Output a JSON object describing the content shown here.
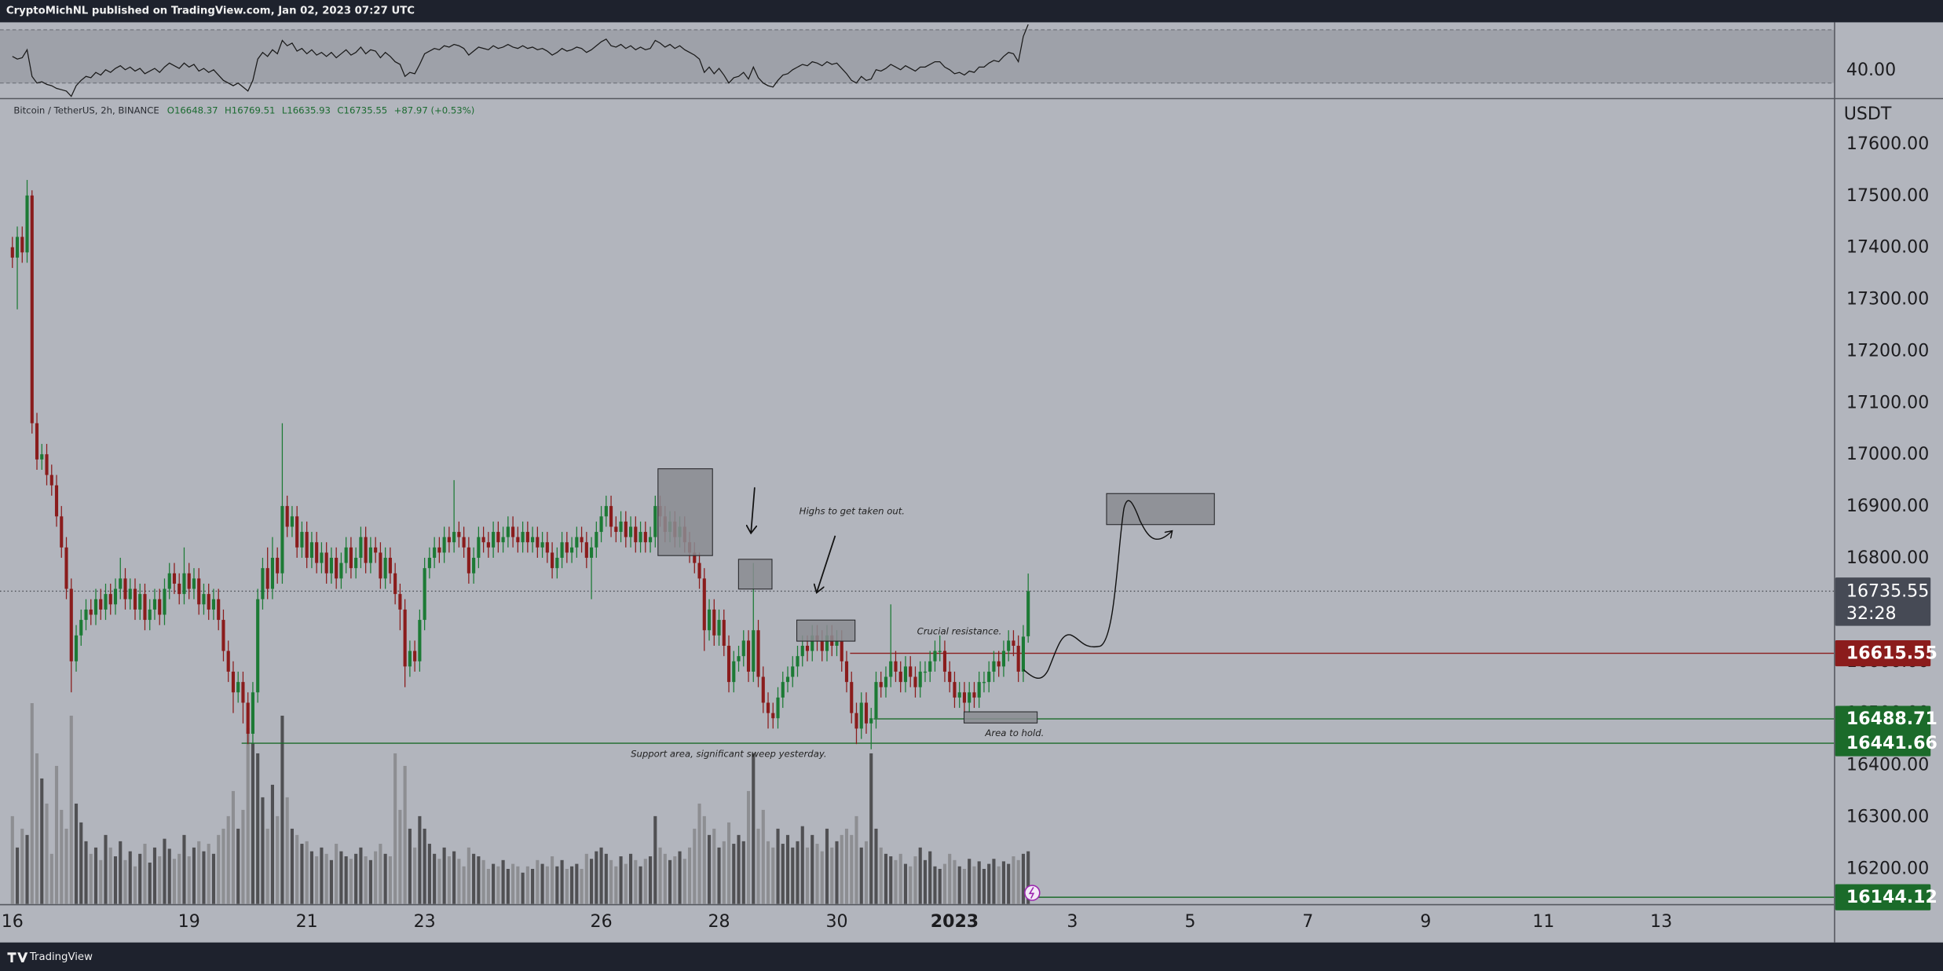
{
  "chart_data": {
    "type": "candlestick",
    "header": "CryptoMichNL published on TradingView.com, Jan 02, 2023 07:27 UTC",
    "symbol": "Bitcoin / TetherUS, 2h, BINANCE",
    "ohlc_legend": {
      "open": "O16648.37",
      "high": "H16769.51",
      "low": "L16635.93",
      "close": "C16735.55",
      "change": "+87.97 (+0.53%)"
    },
    "currency": "USDT",
    "up_color": "#1c7a35",
    "down_color": "#8a1c1c",
    "volume_colors": {
      "up": "#505053",
      "down": "#8d8e92"
    },
    "open": [
      17400,
      17380,
      17420,
      17390,
      17500,
      17060,
      16990,
      17000,
      16960,
      16940,
      16880,
      16820,
      16740,
      16600,
      16650,
      16680,
      16700,
      16690,
      16720,
      16700,
      16730,
      16710,
      16740,
      16760,
      16720,
      16740,
      16700,
      16730,
      16680,
      16700,
      16720,
      16690,
      16740,
      16770,
      16750,
      16730,
      16770,
      16740,
      16760,
      16710,
      16730,
      16700,
      16720,
      16680,
      16620,
      16580,
      16540,
      16560,
      16520,
      16460,
      16540,
      16720,
      16780,
      16740,
      16800,
      16770,
      16900,
      16860,
      16880,
      16820,
      16850,
      16800,
      16830,
      16790,
      16810,
      16770,
      16800,
      16760,
      16790,
      16820,
      16780,
      16800,
      16840,
      16790,
      16820,
      16810,
      16760,
      16800,
      16770,
      16730,
      16700,
      16590,
      16620,
      16600,
      16680,
      16780,
      16800,
      16820,
      16810,
      16840,
      16830,
      16850,
      16840,
      16820,
      16770,
      16800,
      16840,
      16830,
      16820,
      16850,
      16830,
      16840,
      16860,
      16840,
      16830,
      16850,
      16830,
      16840,
      16820,
      16830,
      16810,
      16780,
      16800,
      16830,
      16810,
      16820,
      16840,
      16830,
      16800,
      16820,
      16850,
      16880,
      16900,
      16860,
      16850,
      16870,
      16840,
      16860,
      16830,
      16850,
      16830,
      16840,
      16900,
      16880,
      16850,
      16870,
      16840,
      16860,
      16830,
      16810,
      16790,
      16760,
      16660,
      16700,
      16650,
      16680,
      16630,
      16560,
      16600,
      16610,
      16640,
      16580,
      16660,
      16570,
      16520,
      16500,
      16490,
      16530,
      16560,
      16570,
      16590,
      16610,
      16630,
      16620,
      16650,
      16640,
      16620,
      16650,
      16630,
      16640,
      16600,
      16560,
      16500,
      16470,
      16520,
      16480,
      16490,
      16560,
      16550,
      16570,
      16600,
      16580,
      16560,
      16590,
      16570,
      16550,
      16580,
      16580,
      16600,
      16620,
      16620,
      16580,
      16560,
      16530,
      16540,
      16520,
      16540,
      16530,
      16560,
      16560,
      16580,
      16600,
      16590,
      16620,
      16640,
      16630,
      16580,
      16648.37
    ],
    "high": [
      17420,
      17440,
      17440,
      17530,
      17510,
      17080,
      17020,
      17020,
      16980,
      16960,
      16900,
      16840,
      16760,
      16670,
      16700,
      16720,
      16720,
      16740,
      16740,
      16750,
      16750,
      16760,
      16800,
      16780,
      16760,
      16760,
      16750,
      16750,
      16720,
      16740,
      16740,
      16760,
      16790,
      16790,
      16770,
      16820,
      16790,
      16780,
      16780,
      16750,
      16750,
      16740,
      16740,
      16700,
      16640,
      16600,
      16580,
      16580,
      16540,
      16560,
      16740,
      16800,
      16820,
      16840,
      16820,
      17060,
      16920,
      16900,
      16900,
      16870,
      16870,
      16850,
      16850,
      16830,
      16830,
      16820,
      16820,
      16810,
      16840,
      16840,
      16820,
      16860,
      16860,
      16840,
      16840,
      16830,
      16820,
      16820,
      16790,
      16750,
      16720,
      16640,
      16640,
      16700,
      16800,
      16820,
      16840,
      16840,
      16860,
      16860,
      16950,
      16870,
      16860,
      16840,
      16820,
      16860,
      16860,
      16850,
      16870,
      16870,
      16860,
      16880,
      16880,
      16860,
      16870,
      16870,
      16860,
      16860,
      16850,
      16850,
      16830,
      16820,
      16850,
      16850,
      16840,
      16860,
      16860,
      16850,
      16840,
      16870,
      16900,
      16920,
      16920,
      16880,
      16890,
      16890,
      16880,
      16880,
      16870,
      16870,
      16860,
      16920,
      16920,
      16900,
      16890,
      16890,
      16880,
      16880,
      16850,
      16830,
      16810,
      16780,
      16720,
      16720,
      16700,
      16700,
      16650,
      16620,
      16630,
      16660,
      16660,
      16790,
      16680,
      16590,
      16540,
      16520,
      16550,
      16580,
      16590,
      16610,
      16630,
      16650,
      16650,
      16670,
      16670,
      16660,
      16670,
      16670,
      16660,
      16660,
      16620,
      16580,
      16520,
      16540,
      16540,
      16510,
      16580,
      16580,
      16590,
      16710,
      16620,
      16600,
      16610,
      16610,
      16590,
      16600,
      16600,
      16620,
      16640,
      16650,
      16640,
      16600,
      16580,
      16560,
      16560,
      16560,
      16560,
      16580,
      16580,
      16600,
      16620,
      16620,
      16640,
      16660,
      16660,
      16650,
      16670,
      16769.51
    ],
    "low": [
      17360,
      17280,
      17370,
      17370,
      17040,
      16970,
      16970,
      16940,
      16920,
      16860,
      16800,
      16720,
      16540,
      16580,
      16630,
      16660,
      16670,
      16670,
      16680,
      16680,
      16690,
      16690,
      16720,
      16700,
      16700,
      16680,
      16680,
      16660,
      16660,
      16680,
      16670,
      16670,
      16720,
      16730,
      16710,
      16710,
      16720,
      16720,
      16690,
      16690,
      16680,
      16680,
      16660,
      16600,
      16560,
      16500,
      16520,
      16480,
      16440,
      16440,
      16520,
      16700,
      16720,
      16720,
      16750,
      16750,
      16840,
      16840,
      16800,
      16800,
      16780,
      16780,
      16770,
      16770,
      16750,
      16750,
      16740,
      16740,
      16770,
      16760,
      16760,
      16780,
      16770,
      16770,
      16790,
      16740,
      16740,
      16750,
      16710,
      16660,
      16550,
      16570,
      16580,
      16580,
      16660,
      16760,
      16780,
      16790,
      16790,
      16810,
      16810,
      16820,
      16800,
      16750,
      16750,
      16780,
      16810,
      16800,
      16800,
      16810,
      16810,
      16820,
      16820,
      16810,
      16810,
      16810,
      16810,
      16800,
      16800,
      16790,
      16760,
      16760,
      16780,
      16790,
      16790,
      16800,
      16810,
      16780,
      16720,
      16800,
      16830,
      16860,
      16840,
      16830,
      16830,
      16820,
      16820,
      16810,
      16810,
      16810,
      16810,
      16820,
      16860,
      16830,
      16830,
      16820,
      16820,
      16810,
      16790,
      16770,
      16740,
      16620,
      16640,
      16630,
      16630,
      16610,
      16540,
      16540,
      16580,
      16590,
      16560,
      16560,
      16550,
      16500,
      16470,
      16470,
      16470,
      16510,
      16540,
      16550,
      16570,
      16590,
      16600,
      16600,
      16620,
      16600,
      16600,
      16610,
      16610,
      16580,
      16540,
      16480,
      16440,
      16450,
      16460,
      16430,
      16470,
      16530,
      16530,
      16550,
      16560,
      16540,
      16540,
      16550,
      16530,
      16530,
      16560,
      16560,
      16580,
      16600,
      16560,
      16540,
      16510,
      16510,
      16500,
      16500,
      16510,
      16510,
      16540,
      16540,
      16560,
      16570,
      16570,
      16600,
      16610,
      16560,
      16560,
      16635.93
    ],
    "close": [
      17380,
      17420,
      17390,
      17500,
      17060,
      16990,
      17000,
      16960,
      16940,
      16880,
      16820,
      16740,
      16600,
      16650,
      16680,
      16700,
      16690,
      16720,
      16700,
      16730,
      16710,
      16740,
      16760,
      16720,
      16740,
      16700,
      16730,
      16680,
      16700,
      16720,
      16690,
      16740,
      16770,
      16750,
      16730,
      16770,
      16740,
      16760,
      16710,
      16730,
      16700,
      16720,
      16680,
      16620,
      16580,
      16540,
      16560,
      16520,
      16460,
      16540,
      16720,
      16780,
      16740,
      16800,
      16770,
      16900,
      16860,
      16880,
      16820,
      16850,
      16800,
      16830,
      16790,
      16810,
      16770,
      16800,
      16760,
      16790,
      16820,
      16780,
      16800,
      16840,
      16790,
      16820,
      16810,
      16760,
      16800,
      16770,
      16730,
      16700,
      16590,
      16620,
      16600,
      16680,
      16780,
      16800,
      16820,
      16810,
      16840,
      16830,
      16850,
      16840,
      16820,
      16770,
      16800,
      16840,
      16830,
      16820,
      16850,
      16830,
      16840,
      16860,
      16840,
      16830,
      16850,
      16830,
      16840,
      16820,
      16830,
      16810,
      16780,
      16800,
      16830,
      16810,
      16820,
      16840,
      16830,
      16800,
      16820,
      16850,
      16880,
      16900,
      16860,
      16850,
      16870,
      16840,
      16860,
      16830,
      16850,
      16830,
      16840,
      16900,
      16880,
      16850,
      16870,
      16840,
      16860,
      16830,
      16810,
      16790,
      16760,
      16660,
      16700,
      16650,
      16680,
      16630,
      16560,
      16600,
      16610,
      16640,
      16580,
      16660,
      16570,
      16520,
      16500,
      16490,
      16530,
      16560,
      16570,
      16590,
      16610,
      16630,
      16620,
      16650,
      16640,
      16620,
      16650,
      16630,
      16640,
      16600,
      16560,
      16500,
      16470,
      16520,
      16480,
      16490,
      16560,
      16550,
      16570,
      16600,
      16580,
      16560,
      16590,
      16570,
      16550,
      16580,
      16580,
      16600,
      16620,
      16620,
      16580,
      16560,
      16530,
      16540,
      16520,
      16540,
      16530,
      16560,
      16560,
      16580,
      16600,
      16590,
      16620,
      16640,
      16630,
      16580,
      16647.58,
      16735.55
    ],
    "volume": [
      70,
      45,
      60,
      55,
      160,
      120,
      100,
      80,
      40,
      110,
      75,
      60,
      150,
      80,
      65,
      50,
      40,
      45,
      35,
      55,
      45,
      38,
      50,
      35,
      42,
      30,
      40,
      48,
      33,
      45,
      38,
      52,
      44,
      36,
      40,
      55,
      38,
      45,
      50,
      42,
      48,
      40,
      55,
      60,
      70,
      90,
      60,
      75,
      140,
      128,
      120,
      85,
      60,
      95,
      70,
      150,
      85,
      60,
      55,
      48,
      50,
      42,
      38,
      45,
      40,
      35,
      48,
      42,
      38,
      36,
      40,
      45,
      38,
      35,
      42,
      48,
      40,
      38,
      120,
      75,
      110,
      60,
      45,
      70,
      60,
      48,
      40,
      36,
      45,
      38,
      42,
      36,
      30,
      45,
      40,
      38,
      35,
      28,
      32,
      30,
      35,
      28,
      32,
      30,
      25,
      30,
      28,
      35,
      32,
      30,
      38,
      30,
      35,
      28,
      30,
      32,
      28,
      40,
      36,
      42,
      45,
      40,
      35,
      30,
      38,
      32,
      40,
      35,
      30,
      36,
      38,
      70,
      45,
      40,
      35,
      38,
      42,
      36,
      45,
      60,
      80,
      70,
      55,
      60,
      45,
      50,
      65,
      48,
      55,
      50,
      90,
      120,
      60,
      75,
      50,
      45,
      60,
      48,
      55,
      45,
      50,
      62,
      45,
      55,
      48,
      42,
      60,
      45,
      50,
      55,
      60,
      55,
      70,
      45,
      50,
      120,
      60,
      45,
      40,
      38,
      35,
      40,
      32,
      30,
      38,
      45,
      35,
      42,
      30,
      28,
      32,
      40,
      35,
      30,
      28,
      36,
      30,
      34,
      28,
      32,
      36,
      30,
      34,
      32,
      38,
      35,
      40,
      42
    ],
    "xlim": [
      -2.525,
      371.2
    ],
    "xticks": [
      {
        "value": 0,
        "label": "16"
      },
      {
        "value": 36,
        "label": "19"
      },
      {
        "value": 60,
        "label": "21"
      },
      {
        "value": 84,
        "label": "23"
      },
      {
        "value": 120,
        "label": "26"
      },
      {
        "value": 144,
        "label": "28"
      },
      {
        "value": 168,
        "label": "30"
      },
      {
        "value": 192,
        "label": "2023",
        "bold": true
      },
      {
        "value": 216,
        "label": "3"
      },
      {
        "value": 240,
        "label": "5"
      },
      {
        "value": 264,
        "label": "7"
      },
      {
        "value": 288,
        "label": "9"
      },
      {
        "value": 312,
        "label": "11"
      },
      {
        "value": 336,
        "label": "13"
      }
    ],
    "ylim": [
      16131,
      17686
    ],
    "yticks": [
      {
        "value": 16200,
        "label": "16200.00"
      },
      {
        "value": 16300,
        "label": "16300.00"
      },
      {
        "value": 16400,
        "label": "16400.00"
      },
      {
        "value": 16500,
        "label": "16500.00"
      },
      {
        "value": 16600,
        "label": "16600.00"
      },
      {
        "value": 16700,
        "label": "16700.00"
      },
      {
        "value": 16800,
        "label": "16800.00"
      },
      {
        "value": 16900,
        "label": "16900.00"
      },
      {
        "value": 17000,
        "label": "17000.00"
      },
      {
        "value": 17100,
        "label": "17100.00"
      },
      {
        "value": 17200,
        "label": "17200.00"
      },
      {
        "value": 17300,
        "label": "17300.00"
      },
      {
        "value": 17400,
        "label": "17400.00"
      },
      {
        "value": 17500,
        "label": "17500.00"
      },
      {
        "value": 17600,
        "label": "17600.00"
      }
    ],
    "last_price": {
      "value": 16735.55,
      "countdown": "32:28"
    },
    "price_lines": [
      {
        "value": 16615.55,
        "color": "#8b1c1c"
      },
      {
        "value": 16488.71,
        "color": "#1b6b2a"
      },
      {
        "value": 16441.66,
        "color": "#1b6b2a"
      },
      {
        "value": 16144.12,
        "color": "#1b6b2a"
      }
    ],
    "annotations": [
      "Highs to get taken out.",
      "Crucial resistance.",
      "Area to hold.",
      "Support area, significant sweep yesterday."
    ],
    "rsi": {
      "values": [
        50,
        48,
        49,
        55,
        35,
        30,
        31,
        29,
        28,
        26,
        25,
        24,
        20,
        28,
        32,
        35,
        34,
        38,
        36,
        40,
        38,
        41,
        43,
        40,
        42,
        39,
        41,
        37,
        39,
        41,
        38,
        42,
        45,
        43,
        41,
        45,
        42,
        44,
        39,
        41,
        38,
        40,
        36,
        32,
        30,
        28,
        30,
        27,
        24,
        32,
        48,
        53,
        50,
        55,
        52,
        62,
        58,
        60,
        54,
        56,
        52,
        55,
        51,
        53,
        50,
        53,
        49,
        52,
        55,
        51,
        53,
        57,
        52,
        55,
        54,
        49,
        53,
        50,
        46,
        44,
        35,
        38,
        37,
        44,
        52,
        54,
        56,
        55,
        58,
        57,
        59,
        58,
        56,
        51,
        54,
        57,
        56,
        55,
        58,
        56,
        57,
        59,
        57,
        56,
        58,
        56,
        57,
        55,
        56,
        54,
        51,
        53,
        56,
        54,
        55,
        57,
        56,
        53,
        55,
        58,
        61,
        63,
        58,
        57,
        59,
        56,
        58,
        55,
        57,
        55,
        56,
        62,
        60,
        57,
        59,
        56,
        58,
        55,
        53,
        51,
        48,
        38,
        42,
        37,
        41,
        36,
        30,
        34,
        35,
        38,
        33,
        42,
        34,
        30,
        28,
        27,
        32,
        36,
        37,
        40,
        42,
        44,
        43,
        46,
        45,
        43,
        46,
        44,
        45,
        41,
        37,
        32,
        30,
        35,
        32,
        33,
        40,
        39,
        41,
        44,
        42,
        40,
        43,
        41,
        39,
        42,
        42,
        44,
        46,
        46,
        42,
        40,
        37,
        38,
        36,
        39,
        38,
        42,
        42,
        45,
        47,
        46,
        50,
        53,
        52,
        46,
        65,
        74
      ],
      "ylim": [
        18.8,
        75.6
      ],
      "yticks": [
        {
          "value": 40,
          "label": "40.00"
        }
      ],
      "bands": [
        30,
        70
      ]
    },
    "footer": "TradingView"
  }
}
